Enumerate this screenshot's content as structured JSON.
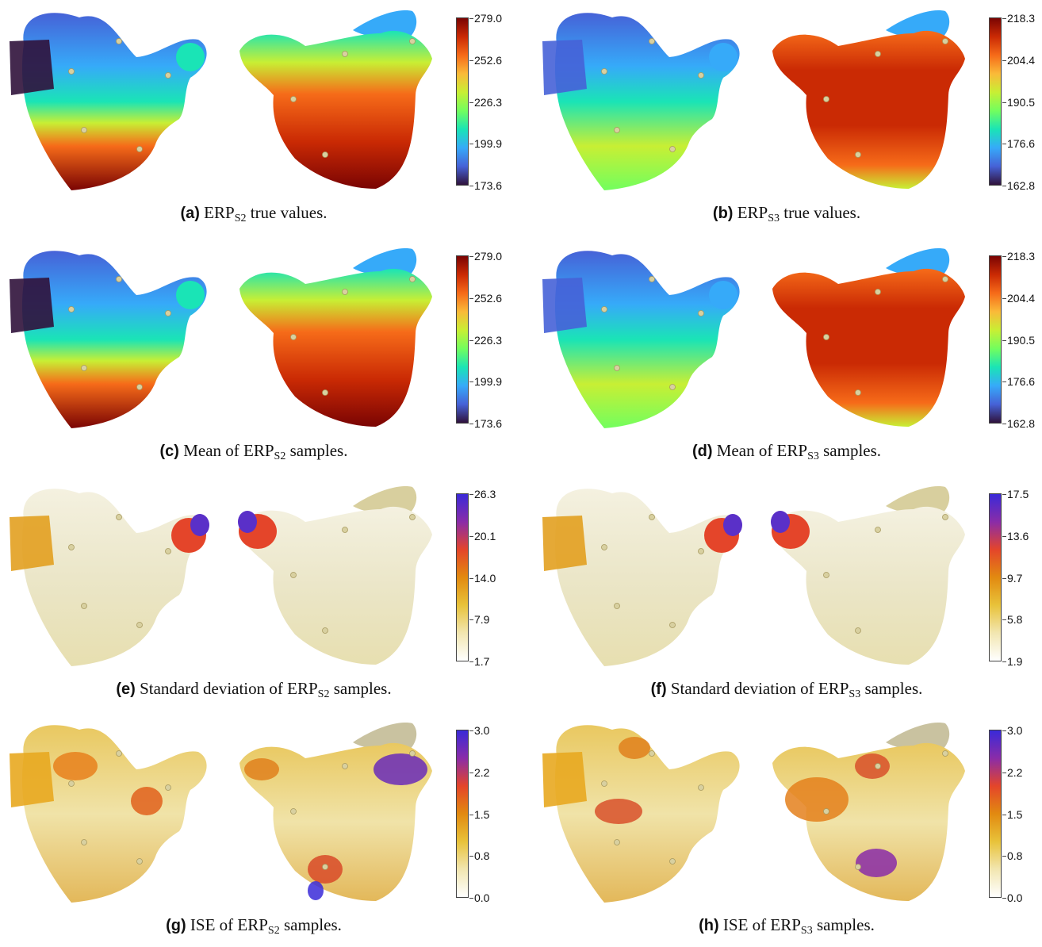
{
  "panels": [
    {
      "letter": "(a)",
      "pre": " ERP",
      "sub": "S2",
      "post": " true values.",
      "ticks": [
        "279.0",
        "252.6",
        "226.3",
        "199.9",
        "173.6"
      ],
      "scheme": "turbo",
      "style": "a"
    },
    {
      "letter": "(b)",
      "pre": " ERP",
      "sub": "S3",
      "post": " true values.",
      "ticks": [
        "218.3",
        "204.4",
        "190.5",
        "176.6",
        "162.8"
      ],
      "scheme": "turbo",
      "style": "b"
    },
    {
      "letter": "(c)",
      "pre": " Mean of ERP",
      "sub": "S2",
      "post": " samples.",
      "ticks": [
        "279.0",
        "252.6",
        "226.3",
        "199.9",
        "173.6"
      ],
      "scheme": "turbo",
      "style": "a"
    },
    {
      "letter": "(d)",
      "pre": " Mean of ERP",
      "sub": "S3",
      "post": " samples.",
      "ticks": [
        "218.3",
        "204.4",
        "190.5",
        "176.6",
        "162.8"
      ],
      "scheme": "turbo",
      "style": "b"
    },
    {
      "letter": "(e)",
      "pre": " Standard deviation of ERP",
      "sub": "S2",
      "post": " samples.",
      "ticks": [
        "26.3",
        "20.1",
        "14.0",
        "7.9",
        "1.7"
      ],
      "scheme": "sequential",
      "style": "sd"
    },
    {
      "letter": "(f)",
      "pre": " Standard deviation of ERP",
      "sub": "S3",
      "post": " samples.",
      "ticks": [
        "17.5",
        "13.6",
        "9.7",
        "5.8",
        "1.9"
      ],
      "scheme": "sequential",
      "style": "sd"
    },
    {
      "letter": "(g)",
      "pre": " ISE of ERP",
      "sub": "S2",
      "post": " samples.",
      "ticks": [
        "3.0",
        "2.2",
        "1.5",
        "0.8",
        "0.0"
      ],
      "scheme": "sequential",
      "style": "ise"
    },
    {
      "letter": "(h)",
      "pre": " ISE of ERP",
      "sub": "S3",
      "post": " samples.",
      "ticks": [
        "3.0",
        "2.2",
        "1.5",
        "0.8",
        "0.0"
      ],
      "scheme": "sequential",
      "style": "ise"
    }
  ],
  "colors": {
    "turbo": [
      "#30123b",
      "#4662d7",
      "#36aaf9",
      "#1ae4b6",
      "#72fe5e",
      "#c8ef34",
      "#faba39",
      "#f66b19",
      "#ca2a04",
      "#7a0403"
    ],
    "sequential": [
      "#ffffff",
      "#f2e6b0",
      "#e8c23a",
      "#e28a10",
      "#e4452a",
      "#8a2ca8",
      "#3a2ad8"
    ]
  }
}
